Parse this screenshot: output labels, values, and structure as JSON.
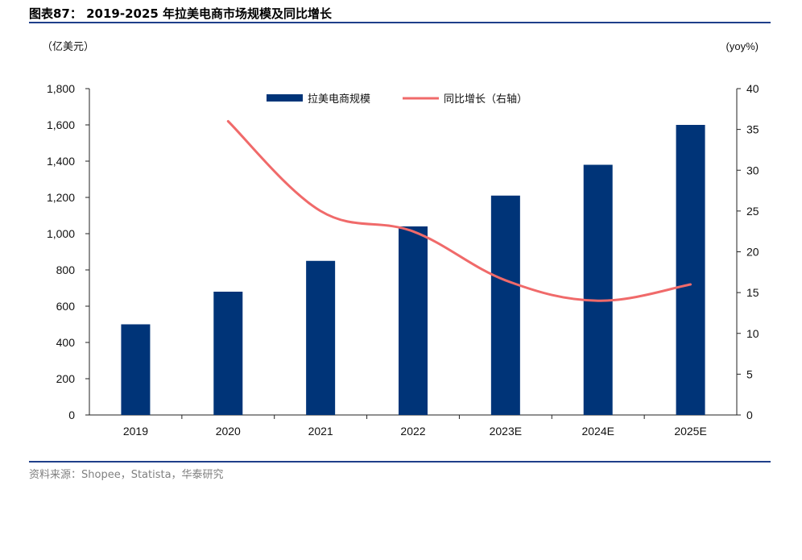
{
  "header": {
    "title": "图表87：  2019-2025 年拉美电商市场规模及同比增长"
  },
  "footer": {
    "source": "资料来源：Shopee，Statista，华泰研究"
  },
  "chart_data": {
    "type": "bar",
    "categories": [
      "2019",
      "2020",
      "2021",
      "2022",
      "2023E",
      "2024E",
      "2025E"
    ],
    "series": [
      {
        "name": "拉美电商规模",
        "type": "bar",
        "axis": "left",
        "color": "#003478",
        "values": [
          500,
          680,
          850,
          1040,
          1210,
          1380,
          1600
        ]
      },
      {
        "name": "同比增长（右轴）",
        "type": "line",
        "axis": "right",
        "color": "#f06a6a",
        "values": [
          null,
          36,
          25,
          22.5,
          16.5,
          14,
          16
        ]
      }
    ],
    "ylabel_left": "（亿美元）",
    "ylabel_right": "(yoy%)",
    "ylim_left": [
      0,
      1800
    ],
    "ylim_right": [
      0,
      40
    ],
    "yticks_left": [
      "0",
      "200",
      "400",
      "600",
      "800",
      "1,000",
      "1,200",
      "1,400",
      "1,600",
      "1,800"
    ],
    "yticks_right": [
      "0",
      "5",
      "10",
      "15",
      "20",
      "25",
      "30",
      "35",
      "40"
    ],
    "grid": false,
    "legend_position": "top-center"
  }
}
